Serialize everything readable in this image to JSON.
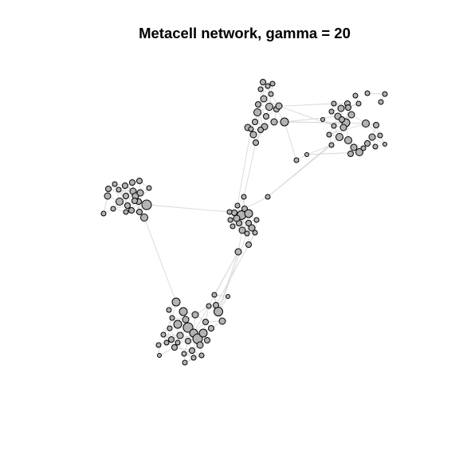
{
  "title": "Metacell network, gamma = 20",
  "colors": {
    "background": "#ffffff",
    "node_fill": "#b3b3b3",
    "node_stroke": "#000000",
    "edge": "#d8d8d8"
  }
}
